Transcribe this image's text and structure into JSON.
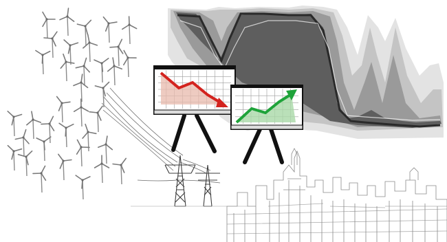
{
  "illustration": {
    "elements": [
      {
        "name": "wind-turbine-field",
        "icon": "wind-turbine-icon",
        "count": 36
      },
      {
        "name": "power-transmission-lines",
        "icon": "power-line-icon"
      },
      {
        "name": "electricity-pylons",
        "icon": "pylon-icon",
        "count": 2
      },
      {
        "name": "city-skyline-sketch",
        "icon": "city-icon"
      },
      {
        "name": "forecast-uncertainty-fan",
        "icon": "fan-chart-icon"
      },
      {
        "name": "declining-chart-easel",
        "icon": "trend-down-icon"
      },
      {
        "name": "rising-chart-easel",
        "icon": "trend-up-icon"
      }
    ],
    "colors": {
      "decline_arrow": "#d3231e",
      "decline_fill": "#e8b9ac",
      "rise_arrow": "#1fa33a",
      "rise_fill": "#a9d8a7",
      "grid_line": "#9a9a9a",
      "easel_legs": "#111111",
      "fan_dark": "#3a3a3a",
      "fan_light": "#dedede",
      "sketch": "#777777"
    },
    "trends": {
      "left_chart": "down",
      "right_chart": "up"
    }
  }
}
